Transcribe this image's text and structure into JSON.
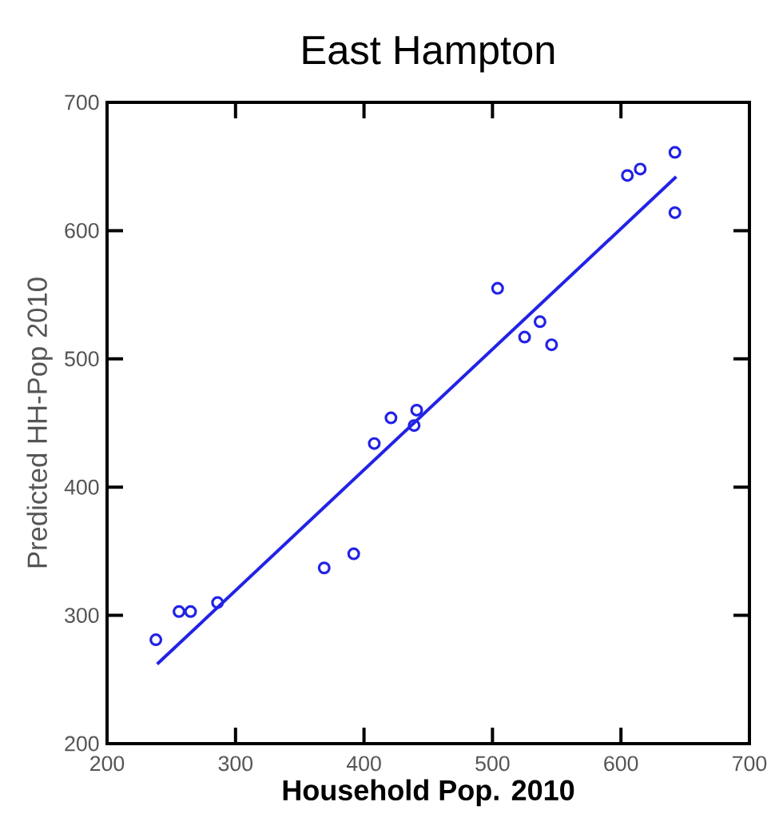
{
  "chart_data": {
    "type": "scatter",
    "title": "East Hampton",
    "xlabel": "Household Pop. 2010",
    "ylabel": "Predicted HH-Pop 2010",
    "xlim": [
      200,
      700
    ],
    "ylim": [
      200,
      700
    ],
    "xticks": [
      200,
      300,
      400,
      500,
      600,
      700
    ],
    "yticks": [
      200,
      300,
      400,
      500,
      600,
      700
    ],
    "grid": false,
    "series": [
      {
        "marker": "circle",
        "color": "#2222e6",
        "x": [
          238,
          256,
          265,
          286,
          369,
          392,
          408,
          421,
          439,
          441,
          504,
          525,
          537,
          546,
          605,
          615,
          642,
          642
        ],
        "values": [
          281,
          303,
          303,
          310,
          337,
          348,
          434,
          454,
          448,
          460,
          555,
          517,
          529,
          511,
          643,
          648,
          661,
          614
        ]
      },
      {
        "type": "line",
        "color": "#2222e6",
        "x": [
          239,
          643
        ],
        "values": [
          262,
          642
        ]
      }
    ]
  }
}
